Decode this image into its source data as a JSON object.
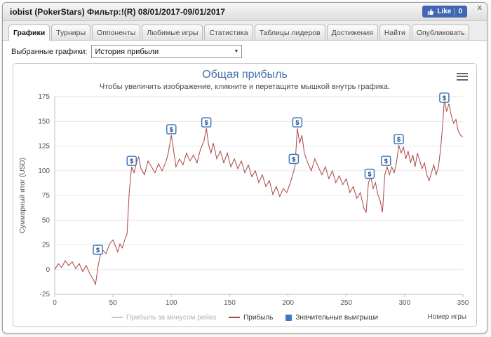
{
  "window": {
    "title": "iobist (PokerStars) Фильтр:!(R) 08/01/2017-09/01/2017",
    "close_label": "x",
    "like": {
      "label": "Like",
      "count": "0"
    }
  },
  "tabs": [
    {
      "id": "graphs",
      "label": "Графики",
      "active": true
    },
    {
      "id": "tournaments",
      "label": "Турниры",
      "active": false
    },
    {
      "id": "opponents",
      "label": "Оппоненты",
      "active": false
    },
    {
      "id": "favorite-games",
      "label": "Любимые игры",
      "active": false
    },
    {
      "id": "statistics",
      "label": "Статистика",
      "active": false
    },
    {
      "id": "leaderboards",
      "label": "Таблицы лидеров",
      "active": false
    },
    {
      "id": "achievements",
      "label": "Достижения",
      "active": false
    },
    {
      "id": "find",
      "label": "Найти",
      "active": false
    },
    {
      "id": "publish",
      "label": "Опубликовать",
      "active": false
    }
  ],
  "graph_selector": {
    "label": "Выбранные графики:",
    "value": "История прибыли"
  },
  "colors": {
    "accent_blue": "#4572A7",
    "profit_red": "#AA4643",
    "marker_blue": "#3B79C3",
    "disabled_gray": "#C8C8C8"
  },
  "chart_data": {
    "type": "line",
    "title": "Общая прибыль",
    "subtitle": "Чтобы увеличить изображение, кликните и перетащите мышкой внутрь графика.",
    "xlabel": "Номер игры",
    "ylabel": "Суммарный итог (USD)",
    "xlim": [
      0,
      350
    ],
    "ylim": [
      -25,
      175
    ],
    "xticks": [
      0,
      50,
      100,
      150,
      200,
      250,
      300,
      350
    ],
    "yticks": [
      -25,
      0,
      25,
      50,
      75,
      100,
      125,
      150,
      175
    ],
    "grid": true,
    "legend_position": "bottom",
    "series": [
      {
        "name": "Прибыль за минусом рейка",
        "color": "#C8C8C8",
        "swatch": "line",
        "visible": false,
        "points": []
      },
      {
        "name": "Прибыль",
        "color": "#AA4643",
        "swatch": "line",
        "visible": true,
        "points": [
          [
            0,
            0
          ],
          [
            3,
            6
          ],
          [
            6,
            2
          ],
          [
            9,
            9
          ],
          [
            12,
            4
          ],
          [
            15,
            8
          ],
          [
            18,
            1
          ],
          [
            21,
            6
          ],
          [
            24,
            -2
          ],
          [
            27,
            4
          ],
          [
            30,
            -4
          ],
          [
            33,
            -10
          ],
          [
            35,
            -15
          ],
          [
            37,
            2
          ],
          [
            39,
            14
          ],
          [
            41,
            20
          ],
          [
            44,
            16
          ],
          [
            47,
            26
          ],
          [
            50,
            30
          ],
          [
            52,
            24
          ],
          [
            54,
            18
          ],
          [
            56,
            26
          ],
          [
            58,
            22
          ],
          [
            60,
            30
          ],
          [
            62,
            36
          ],
          [
            64,
            80
          ],
          [
            66,
            104
          ],
          [
            68,
            98
          ],
          [
            70,
            108
          ],
          [
            72,
            114
          ],
          [
            74,
            102
          ],
          [
            77,
            96
          ],
          [
            80,
            110
          ],
          [
            83,
            104
          ],
          [
            86,
            98
          ],
          [
            89,
            107
          ],
          [
            92,
            100
          ],
          [
            95,
            108
          ],
          [
            97,
            116
          ],
          [
            100,
            136
          ],
          [
            102,
            120
          ],
          [
            104,
            104
          ],
          [
            107,
            112
          ],
          [
            110,
            106
          ],
          [
            113,
            118
          ],
          [
            116,
            110
          ],
          [
            119,
            116
          ],
          [
            122,
            108
          ],
          [
            125,
            122
          ],
          [
            128,
            130
          ],
          [
            130,
            143
          ],
          [
            132,
            126
          ],
          [
            134,
            118
          ],
          [
            136,
            128
          ],
          [
            139,
            112
          ],
          [
            142,
            120
          ],
          [
            145,
            108
          ],
          [
            148,
            118
          ],
          [
            151,
            104
          ],
          [
            154,
            112
          ],
          [
            157,
            102
          ],
          [
            160,
            110
          ],
          [
            163,
            98
          ],
          [
            166,
            106
          ],
          [
            169,
            94
          ],
          [
            172,
            100
          ],
          [
            175,
            88
          ],
          [
            178,
            96
          ],
          [
            181,
            84
          ],
          [
            184,
            90
          ],
          [
            187,
            76
          ],
          [
            190,
            84
          ],
          [
            193,
            74
          ],
          [
            196,
            82
          ],
          [
            199,
            78
          ],
          [
            202,
            88
          ],
          [
            204,
            96
          ],
          [
            206,
            104
          ],
          [
            208,
            143
          ],
          [
            210,
            128
          ],
          [
            212,
            136
          ],
          [
            214,
            118
          ],
          [
            217,
            108
          ],
          [
            220,
            100
          ],
          [
            223,
            112
          ],
          [
            226,
            104
          ],
          [
            229,
            96
          ],
          [
            232,
            104
          ],
          [
            235,
            92
          ],
          [
            238,
            100
          ],
          [
            241,
            88
          ],
          [
            244,
            95
          ],
          [
            247,
            86
          ],
          [
            250,
            92
          ],
          [
            253,
            78
          ],
          [
            256,
            84
          ],
          [
            259,
            72
          ],
          [
            262,
            78
          ],
          [
            265,
            62
          ],
          [
            267,
            58
          ],
          [
            269,
            88
          ],
          [
            271,
            94
          ],
          [
            273,
            82
          ],
          [
            275,
            88
          ],
          [
            277,
            76
          ],
          [
            279,
            70
          ],
          [
            281,
            58
          ],
          [
            283,
            96
          ],
          [
            285,
            104
          ],
          [
            287,
            96
          ],
          [
            289,
            104
          ],
          [
            291,
            98
          ],
          [
            293,
            108
          ],
          [
            295,
            126
          ],
          [
            297,
            118
          ],
          [
            299,
            124
          ],
          [
            301,
            112
          ],
          [
            303,
            120
          ],
          [
            305,
            108
          ],
          [
            307,
            116
          ],
          [
            309,
            104
          ],
          [
            311,
            118
          ],
          [
            313,
            110
          ],
          [
            315,
            102
          ],
          [
            317,
            108
          ],
          [
            319,
            96
          ],
          [
            321,
            90
          ],
          [
            323,
            98
          ],
          [
            325,
            106
          ],
          [
            327,
            96
          ],
          [
            329,
            104
          ],
          [
            331,
            124
          ],
          [
            333,
            152
          ],
          [
            334,
            172
          ],
          [
            336,
            160
          ],
          [
            338,
            168
          ],
          [
            340,
            156
          ],
          [
            342,
            148
          ],
          [
            344,
            152
          ],
          [
            346,
            140
          ],
          [
            348,
            136
          ],
          [
            350,
            134
          ]
        ]
      },
      {
        "name": "Значительные выигрыши",
        "color": "#3B79C3",
        "swatch": "square",
        "visible": true,
        "marker": "$",
        "points": [
          [
            37,
            20
          ],
          [
            66,
            110
          ],
          [
            100,
            142
          ],
          [
            130,
            149
          ],
          [
            205,
            112
          ],
          [
            208,
            149
          ],
          [
            270,
            97
          ],
          [
            284,
            110
          ],
          [
            295,
            132
          ],
          [
            334,
            174
          ]
        ]
      }
    ]
  }
}
